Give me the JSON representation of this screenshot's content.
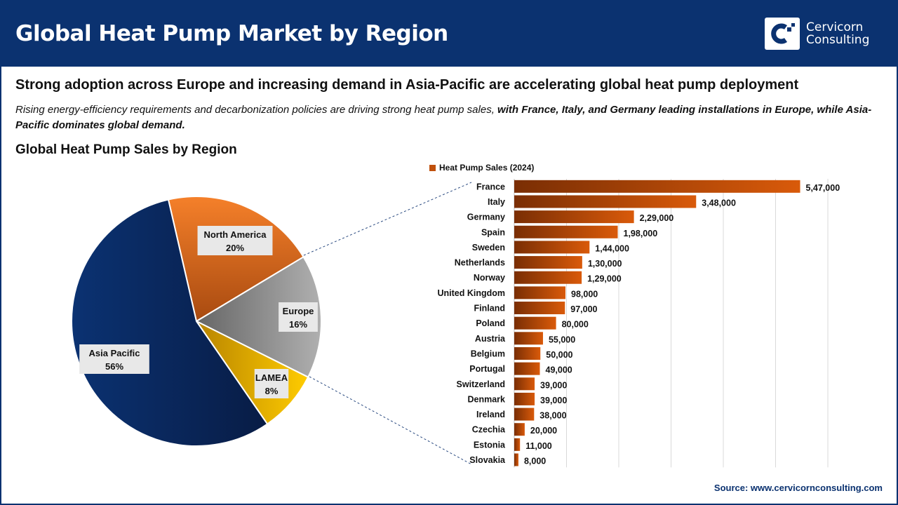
{
  "header": {
    "title": "Global Heat Pump Market by Region",
    "logo_line1": "Cervicorn",
    "logo_line2": "Consulting"
  },
  "headline": "Strong adoption across Europe and increasing demand in Asia-Pacific are accelerating global heat pump deployment",
  "subtitle": {
    "normal": "Rising energy-efficiency requirements and decarbonization policies are driving strong heat pump sales, ",
    "bold": "with France, Italy, and Germany leading installations in Europe, while Asia-Pacific dominates global demand",
    "end": "."
  },
  "section_title": "Global Heat Pump Sales by Region",
  "source": "Source: www.cervicornconsulting.com",
  "colors": {
    "brand": "#0b3270",
    "bar": "#c0500c"
  },
  "chart_data": [
    {
      "type": "pie",
      "slices": [
        {
          "label": "North America",
          "value": 20,
          "text": "20%",
          "color": "#e8741e"
        },
        {
          "label": "Europe",
          "value": 16,
          "text": "16%",
          "color": "#9a9a9a"
        },
        {
          "label": "LAMEA",
          "value": 8,
          "text": "8%",
          "color": "#f2b800"
        },
        {
          "label": "Asia Pacific",
          "value": 56,
          "text": "56%",
          "color": "#0b2a62"
        }
      ]
    },
    {
      "type": "bar",
      "orientation": "horizontal",
      "legend": "Heat Pump Sales (2024)",
      "xlim": [
        0,
        600000
      ],
      "grid": true,
      "categories": [
        "France",
        "Italy",
        "Germany",
        "Spain",
        "Sweden",
        "Netherlands",
        "Norway",
        "United Kingdom",
        "Finland",
        "Poland",
        "Austria",
        "Belgium",
        "Portugal",
        "Switzerland",
        "Denmark",
        "Ireland",
        "Czechia",
        "Estonia",
        "Slovakia"
      ],
      "values": [
        547000,
        348000,
        229000,
        198000,
        144000,
        130000,
        129000,
        98000,
        97000,
        80000,
        55000,
        50000,
        49000,
        39000,
        39000,
        38000,
        20000,
        11000,
        8000
      ],
      "labels": [
        "5,47,000",
        "3,48,000",
        "2,29,000",
        "1,98,000",
        "1,44,000",
        "1,30,000",
        "1,29,000",
        "98,000",
        "97,000",
        "80,000",
        "55,000",
        "50,000",
        "49,000",
        "39,000",
        "39,000",
        "38,000",
        "20,000",
        "11,000",
        "8,000"
      ]
    }
  ]
}
